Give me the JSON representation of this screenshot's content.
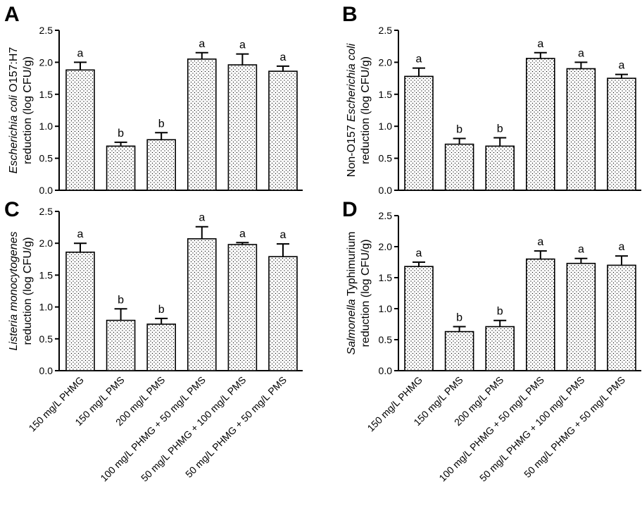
{
  "colors": {
    "axis": "#000000",
    "bar_stroke": "#000000",
    "bar_fill": "#ffffff",
    "stipple": "#000000"
  },
  "chart_data": [
    {
      "type": "bar",
      "panel": "A",
      "ylabel_lines": [
        [
          {
            "t": "Escherichia coli",
            "i": true
          },
          {
            "t": " O157:H7",
            "i": false
          }
        ],
        [
          {
            "t": "reduction (log CFU/g)",
            "i": false
          }
        ]
      ],
      "ylim": [
        0,
        2.5
      ],
      "yticks": [
        "0.0",
        "0.5",
        "1.0",
        "1.5",
        "2.0",
        "2.5"
      ],
      "categories": [
        "150 mg/L PHMG",
        "150 mg/L PMS",
        "200 mg/L PMS",
        "100 mg/L PHMG + 50 mg/L PMS",
        "50 mg/L PHMG + 100 mg/L PMS",
        "50 mg/L PHMG + 50 mg/L PMS"
      ],
      "values": [
        1.88,
        0.69,
        0.79,
        2.05,
        1.96,
        1.86
      ],
      "errors": [
        0.12,
        0.06,
        0.11,
        0.1,
        0.17,
        0.08
      ],
      "letters": [
        "a",
        "b",
        "b",
        "a",
        "a",
        "a"
      ],
      "show_categories": false
    },
    {
      "type": "bar",
      "panel": "B",
      "ylabel_lines": [
        [
          {
            "t": "Non-O157 ",
            "i": false
          },
          {
            "t": "Escherichia coli",
            "i": true
          }
        ],
        [
          {
            "t": "reduction (log CFU/g)",
            "i": false
          }
        ]
      ],
      "ylim": [
        0,
        2.5
      ],
      "yticks": [
        "0.0",
        "0.5",
        "1.0",
        "1.5",
        "2.0",
        "2.5"
      ],
      "categories": [
        "150 mg/L PHMG",
        "150 mg/L PMS",
        "200 mg/L PMS",
        "100 mg/L PHMG + 50 mg/L PMS",
        "50 mg/L PHMG + 100 mg/L PMS",
        "50 mg/L PHMG + 50 mg/L PMS"
      ],
      "values": [
        1.78,
        0.72,
        0.69,
        2.06,
        1.9,
        1.75
      ],
      "errors": [
        0.13,
        0.09,
        0.13,
        0.09,
        0.1,
        0.06
      ],
      "letters": [
        "a",
        "b",
        "b",
        "a",
        "a",
        "a"
      ],
      "show_categories": false
    },
    {
      "type": "bar",
      "panel": "C",
      "ylabel_lines": [
        [
          {
            "t": "Listeria monocytogenes",
            "i": true
          }
        ],
        [
          {
            "t": "reduction (log CFU/g)",
            "i": false
          }
        ]
      ],
      "ylim": [
        0,
        2.5
      ],
      "yticks": [
        "0.0",
        "0.5",
        "1.0",
        "1.5",
        "2.0",
        "2.5"
      ],
      "categories": [
        "150 mg/L PHMG",
        "150 mg/L PMS",
        "200 mg/L PMS",
        "100 mg/L PHMG + 50 mg/L PMS",
        "50 mg/L PHMG + 100 mg/L PMS",
        "50 mg/L PHMG + 50 mg/L PMS"
      ],
      "values": [
        1.86,
        0.79,
        0.73,
        2.07,
        1.98,
        1.79
      ],
      "errors": [
        0.14,
        0.18,
        0.09,
        0.19,
        0.03,
        0.2
      ],
      "letters": [
        "a",
        "b",
        "b",
        "a",
        "a",
        "a"
      ],
      "show_categories": true
    },
    {
      "type": "bar",
      "panel": "D",
      "ylabel_lines": [
        [
          {
            "t": "Salmonella",
            "i": true
          },
          {
            "t": " Typhimurium",
            "i": false
          }
        ],
        [
          {
            "t": "reduction (log CFU/g)",
            "i": false
          }
        ]
      ],
      "ylim": [
        0,
        2.5
      ],
      "yticks": [
        "0.0",
        "0.5",
        "1.0",
        "1.5",
        "2.0",
        "2.5"
      ],
      "categories": [
        "150 mg/L PHMG",
        "150 mg/L PMS",
        "200 mg/L PMS",
        "100 mg/L PHMG + 50 mg/L PMS",
        "50 mg/L PHMG + 100 mg/L PMS",
        "50 mg/L PHMG + 50 mg/L PMS"
      ],
      "values": [
        1.68,
        0.63,
        0.71,
        1.8,
        1.73,
        1.7
      ],
      "errors": [
        0.07,
        0.08,
        0.1,
        0.13,
        0.08,
        0.15
      ],
      "letters": [
        "a",
        "b",
        "b",
        "a",
        "a",
        "a"
      ],
      "show_categories": true
    }
  ]
}
